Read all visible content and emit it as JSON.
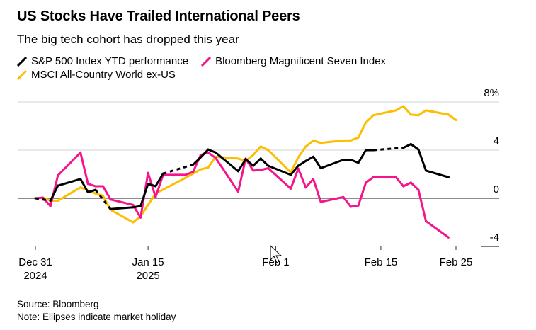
{
  "header": {
    "title": "US Stocks Have Trailed International Peers",
    "subtitle": "The big tech cohort has dropped this year"
  },
  "footer": {
    "source": "Source: Bloomberg",
    "note": "Note: Ellipses indicate market holiday"
  },
  "chart_data": {
    "type": "line",
    "title": "US Stocks Have Trailed International Peers",
    "subtitle": "The big tech cohort has dropped this year",
    "xlabel": "",
    "ylabel": "",
    "ylim": [
      -4,
      8
    ],
    "xlim": [
      "2024-12-31",
      "2025-02-25"
    ],
    "y_ticks": [
      {
        "value": 8,
        "label": "8%"
      },
      {
        "value": 4,
        "label": "4"
      },
      {
        "value": 0,
        "label": "0"
      },
      {
        "value": -4,
        "label": "-4"
      }
    ],
    "x_ticks": [
      {
        "date": "2024-12-31",
        "label": "Dec 31",
        "sublabel": "2024"
      },
      {
        "date": "2025-01-15",
        "label": "Jan 15",
        "sublabel": "2025"
      },
      {
        "date": "2025-02-01",
        "label": "Feb 1",
        "sublabel": ""
      },
      {
        "date": "2025-02-15",
        "label": "Feb 15",
        "sublabel": ""
      },
      {
        "date": "2025-02-25",
        "label": "Feb 25",
        "sublabel": ""
      }
    ],
    "grid": true,
    "y_axis_side": "right",
    "legend_placement": "top-left",
    "series": [
      {
        "name": "S&P 500 Index YTD performance",
        "color": "#000000",
        "holiday_dashed_into": [
          "2025-01-02",
          "2025-01-10",
          "2025-01-21",
          "2025-02-18"
        ],
        "points": [
          [
            "2024-12-31",
            0
          ],
          [
            "2025-01-02",
            -0.2
          ],
          [
            "2025-01-03",
            1.05
          ],
          [
            "2025-01-06",
            1.6
          ],
          [
            "2025-01-07",
            0.5
          ],
          [
            "2025-01-08",
            0.7
          ],
          [
            "2025-01-10",
            -0.9
          ],
          [
            "2025-01-13",
            -0.75
          ],
          [
            "2025-01-14",
            -0.65
          ],
          [
            "2025-01-15",
            1.2
          ],
          [
            "2025-01-16",
            1.0
          ],
          [
            "2025-01-17",
            2.05
          ],
          [
            "2025-01-21",
            2.8
          ],
          [
            "2025-01-22",
            3.4
          ],
          [
            "2025-01-23",
            4.05
          ],
          [
            "2025-01-24",
            3.8
          ],
          [
            "2025-01-27",
            2.25
          ],
          [
            "2025-01-28",
            3.25
          ],
          [
            "2025-01-29",
            2.7
          ],
          [
            "2025-01-30",
            3.3
          ],
          [
            "2025-01-31",
            2.7
          ],
          [
            "2025-02-03",
            1.95
          ],
          [
            "2025-02-04",
            2.7
          ],
          [
            "2025-02-05",
            3.1
          ],
          [
            "2025-02-06",
            3.45
          ],
          [
            "2025-02-07",
            2.5
          ],
          [
            "2025-02-10",
            3.2
          ],
          [
            "2025-02-11",
            3.2
          ],
          [
            "2025-02-12",
            2.95
          ],
          [
            "2025-02-13",
            4.0
          ],
          [
            "2025-02-14",
            4.0
          ],
          [
            "2025-02-18",
            4.2
          ],
          [
            "2025-02-19",
            4.5
          ],
          [
            "2025-02-20",
            4.05
          ],
          [
            "2025-02-21",
            2.3
          ],
          [
            "2025-02-24",
            1.75
          ]
        ]
      },
      {
        "name": "Bloomberg Magnificent Seven Index",
        "color": "#f5148c",
        "points": [
          [
            "2024-12-31",
            0
          ],
          [
            "2025-01-01",
            0.05
          ],
          [
            "2025-01-02",
            -0.65
          ],
          [
            "2025-01-03",
            1.9
          ],
          [
            "2025-01-06",
            3.8
          ],
          [
            "2025-01-07",
            1.2
          ],
          [
            "2025-01-08",
            1.0
          ],
          [
            "2025-01-09",
            1.0
          ],
          [
            "2025-01-10",
            -0.1
          ],
          [
            "2025-01-13",
            -0.55
          ],
          [
            "2025-01-14",
            -1.6
          ],
          [
            "2025-01-15",
            2.1
          ],
          [
            "2025-01-16",
            0.1
          ],
          [
            "2025-01-17",
            1.95
          ],
          [
            "2025-01-20",
            1.95
          ],
          [
            "2025-01-21",
            2.2
          ],
          [
            "2025-01-22",
            3.6
          ],
          [
            "2025-01-23",
            3.8
          ],
          [
            "2025-01-24",
            3.35
          ],
          [
            "2025-01-27",
            0.55
          ],
          [
            "2025-01-28",
            3.3
          ],
          [
            "2025-01-29",
            2.3
          ],
          [
            "2025-01-30",
            2.35
          ],
          [
            "2025-01-31",
            2.5
          ],
          [
            "2025-02-03",
            0.8
          ],
          [
            "2025-02-04",
            2.45
          ],
          [
            "2025-02-05",
            0.9
          ],
          [
            "2025-02-06",
            1.6
          ],
          [
            "2025-02-07",
            -0.3
          ],
          [
            "2025-02-10",
            0.1
          ],
          [
            "2025-02-11",
            -0.7
          ],
          [
            "2025-02-12",
            -0.6
          ],
          [
            "2025-02-13",
            1.3
          ],
          [
            "2025-02-14",
            1.75
          ],
          [
            "2025-02-17",
            1.75
          ],
          [
            "2025-02-18",
            1.0
          ],
          [
            "2025-02-19",
            1.3
          ],
          [
            "2025-02-20",
            0.7
          ],
          [
            "2025-02-21",
            -1.9
          ],
          [
            "2025-02-24",
            -3.25
          ]
        ]
      },
      {
        "name": "MSCI All-Country World ex-US",
        "color": "#fcbf00",
        "points": [
          [
            "2024-12-31",
            0
          ],
          [
            "2025-01-01",
            0.05
          ],
          [
            "2025-01-02",
            -0.2
          ],
          [
            "2025-01-03",
            -0.2
          ],
          [
            "2025-01-06",
            0.9
          ],
          [
            "2025-01-08",
            0.4
          ],
          [
            "2025-01-09",
            0.2
          ],
          [
            "2025-01-10",
            -0.95
          ],
          [
            "2025-01-13",
            -2.0
          ],
          [
            "2025-01-14",
            -1.5
          ],
          [
            "2025-01-16",
            0.4
          ],
          [
            "2025-01-20",
            1.7
          ],
          [
            "2025-01-22",
            2.4
          ],
          [
            "2025-01-23",
            2.55
          ],
          [
            "2025-01-24",
            3.45
          ],
          [
            "2025-01-27",
            3.3
          ],
          [
            "2025-01-28",
            3.1
          ],
          [
            "2025-01-29",
            3.6
          ],
          [
            "2025-01-30",
            4.3
          ],
          [
            "2025-01-31",
            4.0
          ],
          [
            "2025-02-03",
            2.15
          ],
          [
            "2025-02-04",
            3.4
          ],
          [
            "2025-02-05",
            4.3
          ],
          [
            "2025-02-06",
            4.8
          ],
          [
            "2025-02-07",
            4.6
          ],
          [
            "2025-02-10",
            4.8
          ],
          [
            "2025-02-11",
            4.8
          ],
          [
            "2025-02-12",
            5.05
          ],
          [
            "2025-02-13",
            6.3
          ],
          [
            "2025-02-14",
            6.9
          ],
          [
            "2025-02-17",
            7.3
          ],
          [
            "2025-02-18",
            7.65
          ],
          [
            "2025-02-19",
            6.95
          ],
          [
            "2025-02-20",
            6.9
          ],
          [
            "2025-02-21",
            7.3
          ],
          [
            "2025-02-24",
            6.95
          ],
          [
            "2025-02-25",
            6.5
          ]
        ]
      }
    ]
  }
}
